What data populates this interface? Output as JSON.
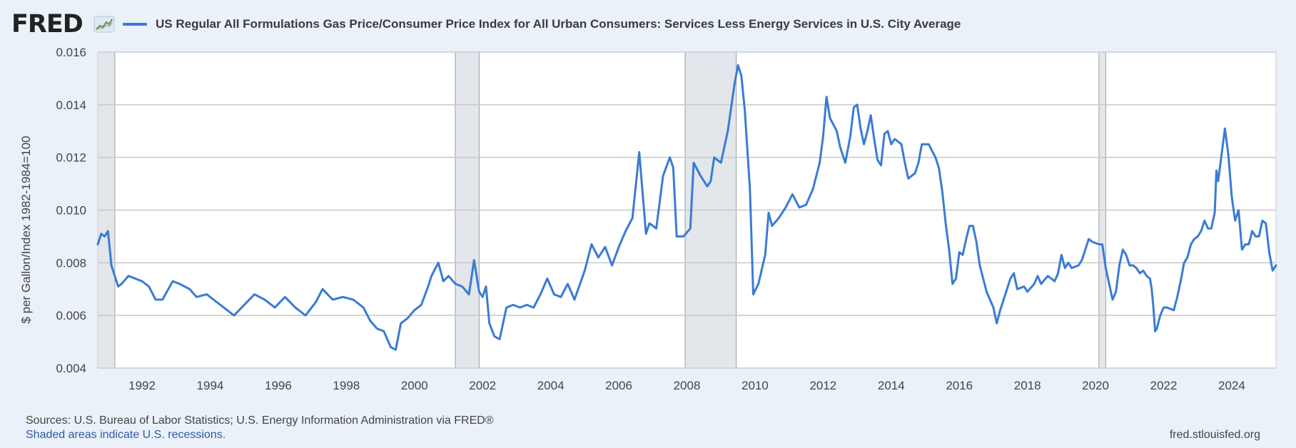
{
  "header": {
    "logo_text": "FRED",
    "legend_label": "US Regular All Formulations Gas Price/Consumer Price Index for All Urban Consumers: Services Less Energy Services in U.S. City Average"
  },
  "footer": {
    "sources": "Sources: U.S. Bureau of Labor Statistics; U.S. Energy Information Administration via FRED®",
    "recessions_note": "Shaded areas indicate U.S. recessions.",
    "site": "fred.stlouisfed.org"
  },
  "colors": {
    "line": "#3a7bd5",
    "recession": "#e3e6eb",
    "grid": "#c8c8c8",
    "background": "#eaf1f9"
  },
  "chart_data": {
    "type": "line",
    "title": "US Regular All Formulations Gas Price/Consumer Price Index for All Urban Consumers: Services Less Energy Services in U.S. City Average",
    "xlabel": "",
    "ylabel": "$ per Gallon/Index 1982-1984=100",
    "xlim": [
      1990.7,
      2025.3
    ],
    "ylim": [
      0.004,
      0.016
    ],
    "x_ticks": [
      1992,
      1994,
      1996,
      1998,
      2000,
      2002,
      2004,
      2006,
      2008,
      2010,
      2012,
      2014,
      2016,
      2018,
      2020,
      2022,
      2024
    ],
    "y_ticks": [
      0.004,
      0.006,
      0.008,
      0.01,
      0.012,
      0.014,
      0.016
    ],
    "y_tick_labels": [
      "0.004",
      "0.006",
      "0.008",
      "0.010",
      "0.012",
      "0.014",
      "0.016"
    ],
    "recessions": [
      [
        1990.7,
        1991.2
      ],
      [
        2001.2,
        2001.9
      ],
      [
        2007.95,
        2009.45
      ],
      [
        2020.1,
        2020.3
      ]
    ],
    "series": [
      {
        "name": "US Regular All Formulations Gas Price/Consumer Price Index for All Urban Consumers: Services Less Energy Services in U.S. City Average",
        "points": [
          [
            1990.7,
            0.0087
          ],
          [
            1990.8,
            0.0091
          ],
          [
            1990.9,
            0.009
          ],
          [
            1991.0,
            0.0092
          ],
          [
            1991.1,
            0.0079
          ],
          [
            1991.3,
            0.0071
          ],
          [
            1991.4,
            0.0072
          ],
          [
            1991.6,
            0.0075
          ],
          [
            1991.8,
            0.0074
          ],
          [
            1992.0,
            0.0073
          ],
          [
            1992.2,
            0.0071
          ],
          [
            1992.4,
            0.0066
          ],
          [
            1992.6,
            0.0066
          ],
          [
            1992.9,
            0.0073
          ],
          [
            1993.1,
            0.0072
          ],
          [
            1993.4,
            0.007
          ],
          [
            1993.6,
            0.0067
          ],
          [
            1993.9,
            0.0068
          ],
          [
            1994.1,
            0.0066
          ],
          [
            1994.4,
            0.0063
          ],
          [
            1994.7,
            0.006
          ],
          [
            1995.0,
            0.0064
          ],
          [
            1995.3,
            0.0068
          ],
          [
            1995.6,
            0.0066
          ],
          [
            1995.9,
            0.0063
          ],
          [
            1996.2,
            0.0067
          ],
          [
            1996.5,
            0.0063
          ],
          [
            1996.8,
            0.006
          ],
          [
            1997.1,
            0.0065
          ],
          [
            1997.3,
            0.007
          ],
          [
            1997.6,
            0.0066
          ],
          [
            1997.9,
            0.0067
          ],
          [
            1998.2,
            0.0066
          ],
          [
            1998.5,
            0.0063
          ],
          [
            1998.7,
            0.0058
          ],
          [
            1998.9,
            0.0055
          ],
          [
            1999.1,
            0.0054
          ],
          [
            1999.3,
            0.0048
          ],
          [
            1999.45,
            0.0047
          ],
          [
            1999.6,
            0.0057
          ],
          [
            1999.8,
            0.0059
          ],
          [
            2000.0,
            0.0062
          ],
          [
            2000.2,
            0.0064
          ],
          [
            2000.4,
            0.0071
          ],
          [
            2000.5,
            0.0075
          ],
          [
            2000.7,
            0.008
          ],
          [
            2000.85,
            0.0073
          ],
          [
            2001.0,
            0.0075
          ],
          [
            2001.2,
            0.0072
          ],
          [
            2001.4,
            0.0071
          ],
          [
            2001.6,
            0.0068
          ],
          [
            2001.75,
            0.0081
          ],
          [
            2001.9,
            0.0069
          ],
          [
            2002.0,
            0.0067
          ],
          [
            2002.1,
            0.0071
          ],
          [
            2002.2,
            0.0057
          ],
          [
            2002.35,
            0.0052
          ],
          [
            2002.5,
            0.0051
          ],
          [
            2002.7,
            0.0063
          ],
          [
            2002.9,
            0.0064
          ],
          [
            2003.1,
            0.0063
          ],
          [
            2003.3,
            0.0064
          ],
          [
            2003.5,
            0.0063
          ],
          [
            2003.7,
            0.0068
          ],
          [
            2003.9,
            0.0074
          ],
          [
            2004.1,
            0.0068
          ],
          [
            2004.3,
            0.0067
          ],
          [
            2004.5,
            0.0072
          ],
          [
            2004.7,
            0.0066
          ],
          [
            2005.0,
            0.0077
          ],
          [
            2005.2,
            0.0087
          ],
          [
            2005.4,
            0.0082
          ],
          [
            2005.6,
            0.0086
          ],
          [
            2005.8,
            0.0079
          ],
          [
            2006.0,
            0.0086
          ],
          [
            2006.2,
            0.0092
          ],
          [
            2006.4,
            0.0097
          ],
          [
            2006.6,
            0.0122
          ],
          [
            2006.8,
            0.0091
          ],
          [
            2006.9,
            0.0095
          ],
          [
            2007.1,
            0.0093
          ],
          [
            2007.3,
            0.0113
          ],
          [
            2007.5,
            0.012
          ],
          [
            2007.6,
            0.0116
          ],
          [
            2007.7,
            0.009
          ],
          [
            2007.9,
            0.009
          ],
          [
            2008.1,
            0.0093
          ],
          [
            2008.2,
            0.0118
          ],
          [
            2008.4,
            0.0113
          ],
          [
            2008.6,
            0.0109
          ],
          [
            2008.7,
            0.0111
          ],
          [
            2008.8,
            0.012
          ],
          [
            2009.0,
            0.0118
          ],
          [
            2009.2,
            0.013
          ],
          [
            2009.4,
            0.0148
          ],
          [
            2009.5,
            0.0155
          ],
          [
            2009.6,
            0.0151
          ],
          [
            2009.7,
            0.0138
          ],
          [
            2009.85,
            0.0108
          ],
          [
            2009.95,
            0.0068
          ],
          [
            2010.1,
            0.0072
          ],
          [
            2010.3,
            0.0083
          ],
          [
            2010.4,
            0.0099
          ],
          [
            2010.5,
            0.0094
          ],
          [
            2010.7,
            0.0097
          ],
          [
            2010.9,
            0.0101
          ],
          [
            2011.1,
            0.0106
          ],
          [
            2011.3,
            0.0101
          ],
          [
            2011.5,
            0.0102
          ],
          [
            2011.7,
            0.0108
          ],
          [
            2011.9,
            0.0118
          ],
          [
            2012.0,
            0.0128
          ],
          [
            2012.1,
            0.0143
          ],
          [
            2012.2,
            0.0135
          ],
          [
            2012.4,
            0.013
          ],
          [
            2012.5,
            0.0124
          ],
          [
            2012.65,
            0.0118
          ],
          [
            2012.8,
            0.0128
          ],
          [
            2012.9,
            0.0139
          ],
          [
            2013.0,
            0.014
          ],
          [
            2013.1,
            0.0131
          ],
          [
            2013.2,
            0.0125
          ],
          [
            2013.3,
            0.013
          ],
          [
            2013.4,
            0.0136
          ],
          [
            2013.5,
            0.0127
          ],
          [
            2013.6,
            0.0119
          ],
          [
            2013.7,
            0.0117
          ],
          [
            2013.8,
            0.0129
          ],
          [
            2013.9,
            0.013
          ],
          [
            2014.0,
            0.0125
          ],
          [
            2014.1,
            0.0127
          ],
          [
            2014.3,
            0.0125
          ],
          [
            2014.4,
            0.0118
          ],
          [
            2014.5,
            0.0112
          ],
          [
            2014.7,
            0.0114
          ],
          [
            2014.8,
            0.0118
          ],
          [
            2014.9,
            0.0125
          ],
          [
            2015.1,
            0.0125
          ],
          [
            2015.3,
            0.012
          ],
          [
            2015.4,
            0.0116
          ],
          [
            2015.5,
            0.0107
          ],
          [
            2015.6,
            0.0095
          ],
          [
            2015.7,
            0.0085
          ],
          [
            2015.8,
            0.0072
          ],
          [
            2015.9,
            0.0074
          ],
          [
            2016.0,
            0.0084
          ],
          [
            2016.1,
            0.0083
          ],
          [
            2016.2,
            0.0089
          ],
          [
            2016.3,
            0.0094
          ],
          [
            2016.4,
            0.0094
          ],
          [
            2016.5,
            0.0088
          ],
          [
            2016.6,
            0.0079
          ],
          [
            2016.8,
            0.0069
          ],
          [
            2017.0,
            0.0063
          ],
          [
            2017.1,
            0.0057
          ],
          [
            2017.2,
            0.0062
          ],
          [
            2017.3,
            0.0066
          ],
          [
            2017.5,
            0.0074
          ],
          [
            2017.6,
            0.0076
          ],
          [
            2017.7,
            0.007
          ],
          [
            2017.9,
            0.0071
          ],
          [
            2018.0,
            0.0069
          ],
          [
            2018.2,
            0.0072
          ],
          [
            2018.3,
            0.0075
          ],
          [
            2018.4,
            0.0072
          ],
          [
            2018.6,
            0.0075
          ],
          [
            2018.8,
            0.0073
          ],
          [
            2018.9,
            0.0076
          ],
          [
            2019.0,
            0.0083
          ],
          [
            2019.1,
            0.0078
          ],
          [
            2019.2,
            0.008
          ],
          [
            2019.3,
            0.0078
          ],
          [
            2019.5,
            0.0079
          ],
          [
            2019.6,
            0.0081
          ],
          [
            2019.7,
            0.0085
          ],
          [
            2019.8,
            0.0089
          ],
          [
            2019.9,
            0.0088
          ],
          [
            2020.1,
            0.0087
          ],
          [
            2020.2,
            0.0087
          ],
          [
            2020.3,
            0.0078
          ],
          [
            2020.4,
            0.0072
          ],
          [
            2020.5,
            0.0066
          ],
          [
            2020.6,
            0.0069
          ],
          [
            2020.7,
            0.0079
          ],
          [
            2020.8,
            0.0085
          ],
          [
            2020.9,
            0.0083
          ],
          [
            2021.0,
            0.0079
          ],
          [
            2021.1,
            0.0079
          ],
          [
            2021.2,
            0.0078
          ],
          [
            2021.3,
            0.0076
          ],
          [
            2021.4,
            0.0077
          ],
          [
            2021.5,
            0.0075
          ],
          [
            2021.6,
            0.0074
          ],
          [
            2021.65,
            0.007
          ],
          [
            2021.7,
            0.0063
          ],
          [
            2021.75,
            0.0054
          ],
          [
            2021.8,
            0.0055
          ],
          [
            2021.9,
            0.006
          ],
          [
            2022.0,
            0.0063
          ],
          [
            2022.1,
            0.0063
          ],
          [
            2022.3,
            0.0062
          ],
          [
            2022.4,
            0.0067
          ],
          [
            2022.5,
            0.0073
          ],
          [
            2022.6,
            0.008
          ],
          [
            2022.7,
            0.0082
          ],
          [
            2022.8,
            0.0087
          ],
          [
            2022.9,
            0.0089
          ],
          [
            2023.0,
            0.009
          ],
          [
            2023.1,
            0.0092
          ],
          [
            2023.2,
            0.0096
          ],
          [
            2023.3,
            0.0093
          ],
          [
            2023.4,
            0.0093
          ],
          [
            2023.5,
            0.0099
          ],
          [
            2023.55,
            0.0115
          ],
          [
            2023.6,
            0.0111
          ],
          [
            2023.7,
            0.0121
          ],
          [
            2023.8,
            0.0131
          ],
          [
            2023.9,
            0.0121
          ],
          [
            2024.0,
            0.0105
          ],
          [
            2024.1,
            0.0096
          ],
          [
            2024.2,
            0.01
          ],
          [
            2024.3,
            0.0085
          ],
          [
            2024.4,
            0.0087
          ],
          [
            2024.5,
            0.0087
          ],
          [
            2024.6,
            0.0092
          ],
          [
            2024.7,
            0.009
          ],
          [
            2024.8,
            0.009
          ],
          [
            2024.9,
            0.0096
          ],
          [
            2025.0,
            0.0095
          ],
          [
            2025.1,
            0.0084
          ],
          [
            2025.2,
            0.0077
          ],
          [
            2025.3,
            0.0079
          ]
        ]
      }
    ]
  }
}
